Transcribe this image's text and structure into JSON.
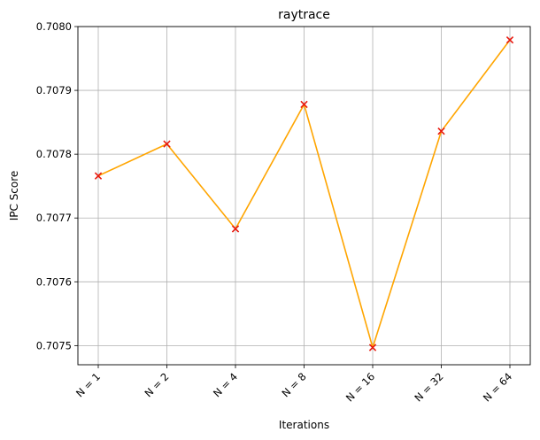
{
  "chart_data": {
    "type": "line",
    "title": "raytrace",
    "xlabel": "Iterations",
    "ylabel": "IPC Score",
    "categories": [
      "N = 1",
      "N = 2",
      "N = 4",
      "N = 8",
      "N = 16",
      "N = 32",
      "N = 64"
    ],
    "series": [
      {
        "values": [
          0.707766,
          0.707816,
          0.707683,
          0.707878,
          0.707497,
          0.707836,
          0.707979
        ],
        "color": "#ffa500",
        "marker": "x",
        "marker_color": "#e8190e"
      }
    ],
    "ylim": [
      0.70747,
      0.708
    ],
    "yticks": [
      0.7075,
      0.7076,
      0.7077,
      0.7078,
      0.7079,
      0.708
    ],
    "ytick_labels": [
      "0.7075",
      "0.7076",
      "0.7077",
      "0.7078",
      "0.7079",
      "0.7080"
    ],
    "grid": true,
    "xtick_rotation": 45
  }
}
